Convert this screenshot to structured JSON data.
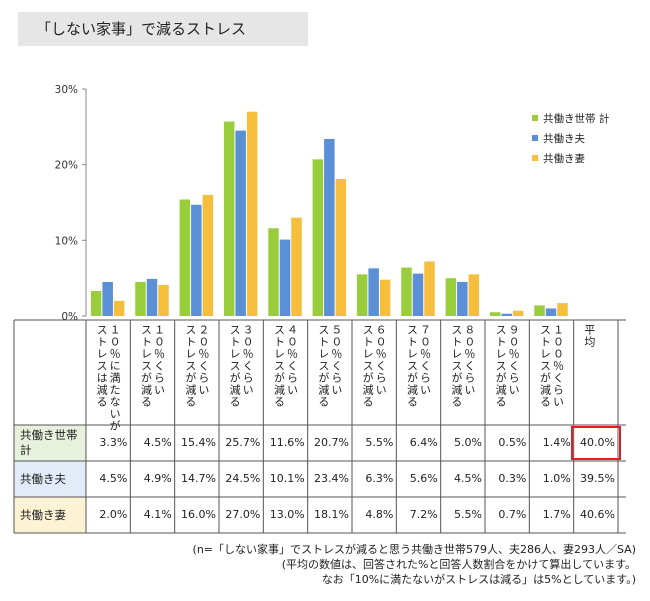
{
  "title": "「しない家事」で減るストレス",
  "chart_data": {
    "type": "bar",
    "y_ticks": [
      "0%",
      "10%",
      "20%",
      "30%"
    ],
    "ylim": [
      0,
      30
    ],
    "categories": [
      "10%に満たないがストレスは減る",
      "10%くらいストレスが減る",
      "20%くらいストレスが減る",
      "30%くらいストレスが減る",
      "40%くらいストレスが減る",
      "50%くらいストレスが減る",
      "60%くらいストレスが減る",
      "70%くらいストレスが減る",
      "80%くらいストレスが減る",
      "90%くらいストレスが減る",
      "100%くらいストレスが減る"
    ],
    "column_labels": [
      "１０％に満たないが\nストレスは減る",
      "１０％くらい\nストレスが減る",
      "２０％くらい\nストレスが減る",
      "３０％くらい\nストレスが減る",
      "４０％くらい\nストレスが減る",
      "５０％くらい\nストレスが減る",
      "６０％くらい\nストレスが減る",
      "７０％くらい\nストレスが減る",
      "８０％くらい\nストレスが減る",
      "９０％くらい\nストレスが減る",
      "１００％くらい\nストレスが減る",
      "平均"
    ],
    "series": [
      {
        "name": "共働き世帯 計",
        "color": "#9acd3c",
        "values": [
          3.3,
          4.5,
          15.4,
          25.7,
          11.6,
          20.7,
          5.5,
          6.4,
          5.0,
          0.5,
          1.4
        ],
        "average": 40.0
      },
      {
        "name": "共働き夫",
        "color": "#5b8fd6",
        "values": [
          4.5,
          4.9,
          14.7,
          24.5,
          10.1,
          23.4,
          6.3,
          5.6,
          4.5,
          0.3,
          1.0
        ],
        "average": 39.5
      },
      {
        "name": "共働き妻",
        "color": "#f5be3c",
        "values": [
          2.0,
          4.1,
          16.0,
          27.0,
          13.0,
          18.1,
          4.8,
          7.2,
          5.5,
          0.7,
          1.7
        ],
        "average": 40.6
      }
    ],
    "table": {
      "row_labels": [
        "共働き世帯\n計",
        "共働き夫",
        "共働き妻"
      ],
      "row_colors": [
        "#e8f1dc",
        "#e2ebf7",
        "#fcf2d4"
      ],
      "cells": [
        [
          "3.3%",
          "4.5%",
          "15.4%",
          "25.7%",
          "11.6%",
          "20.7%",
          "5.5%",
          "6.4%",
          "5.0%",
          "0.5%",
          "1.4%",
          "40.0%"
        ],
        [
          "4.5%",
          "4.9%",
          "14.7%",
          "24.5%",
          "10.1%",
          "23.4%",
          "6.3%",
          "5.6%",
          "4.5%",
          "0.3%",
          "1.0%",
          "39.5%"
        ],
        [
          "2.0%",
          "4.1%",
          "16.0%",
          "27.0%",
          "13.0%",
          "18.1%",
          "4.8%",
          "7.2%",
          "5.5%",
          "0.7%",
          "1.7%",
          "40.6%"
        ]
      ],
      "highlight": {
        "row": 0,
        "col": 11
      }
    }
  },
  "footnotes": [
    "(n=「しない家事」でストレスが減ると思う共働き世帯579人、夫286人、妻293人／SA)",
    "(平均の数値は、回答された%と回答人数割合をかけて算出しています。",
    "なお「10%に満たないがストレスは減る」は5%としています。)"
  ]
}
